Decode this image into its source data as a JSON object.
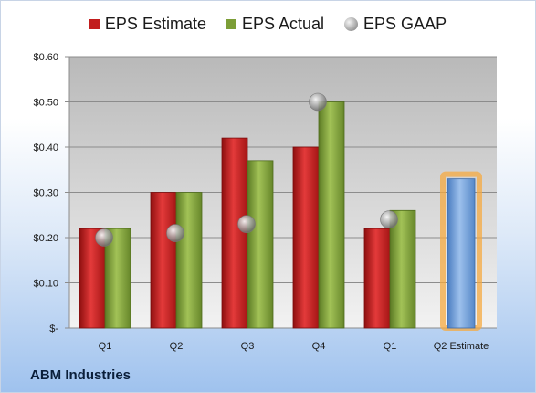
{
  "company": "ABM Industries",
  "legend": {
    "estimate": "EPS Estimate",
    "actual": "EPS Actual",
    "gaap": "EPS GAAP"
  },
  "colors": {
    "estimate": "#c21d1d",
    "actual": "#7c9e37",
    "gaap": "#9b9b9b",
    "future_estimate": "#6d9bd6",
    "highlight": "#f6a940"
  },
  "chart_data": {
    "type": "bar",
    "categories": [
      "Q1",
      "Q2",
      "Q3",
      "Q4",
      "Q1",
      "Q2 Estimate"
    ],
    "series": [
      {
        "name": "EPS Estimate",
        "values": [
          0.22,
          0.3,
          0.42,
          0.4,
          0.22,
          null
        ]
      },
      {
        "name": "EPS Actual",
        "values": [
          0.22,
          0.3,
          0.37,
          0.5,
          0.26,
          null
        ]
      },
      {
        "name": "EPS GAAP",
        "values": [
          0.2,
          0.21,
          0.23,
          0.5,
          0.24,
          null
        ]
      }
    ],
    "future_estimate": {
      "category": "Q2 Estimate",
      "value": 0.33
    },
    "ylim": [
      0,
      0.6
    ],
    "yticks": [
      0,
      0.1,
      0.2,
      0.3,
      0.4,
      0.5,
      0.6
    ],
    "ytick_labels": [
      "$-",
      "$0.10",
      "$0.20",
      "$0.30",
      "$0.40",
      "$0.50",
      "$0.60"
    ],
    "grid": true,
    "legend_position": "top"
  }
}
